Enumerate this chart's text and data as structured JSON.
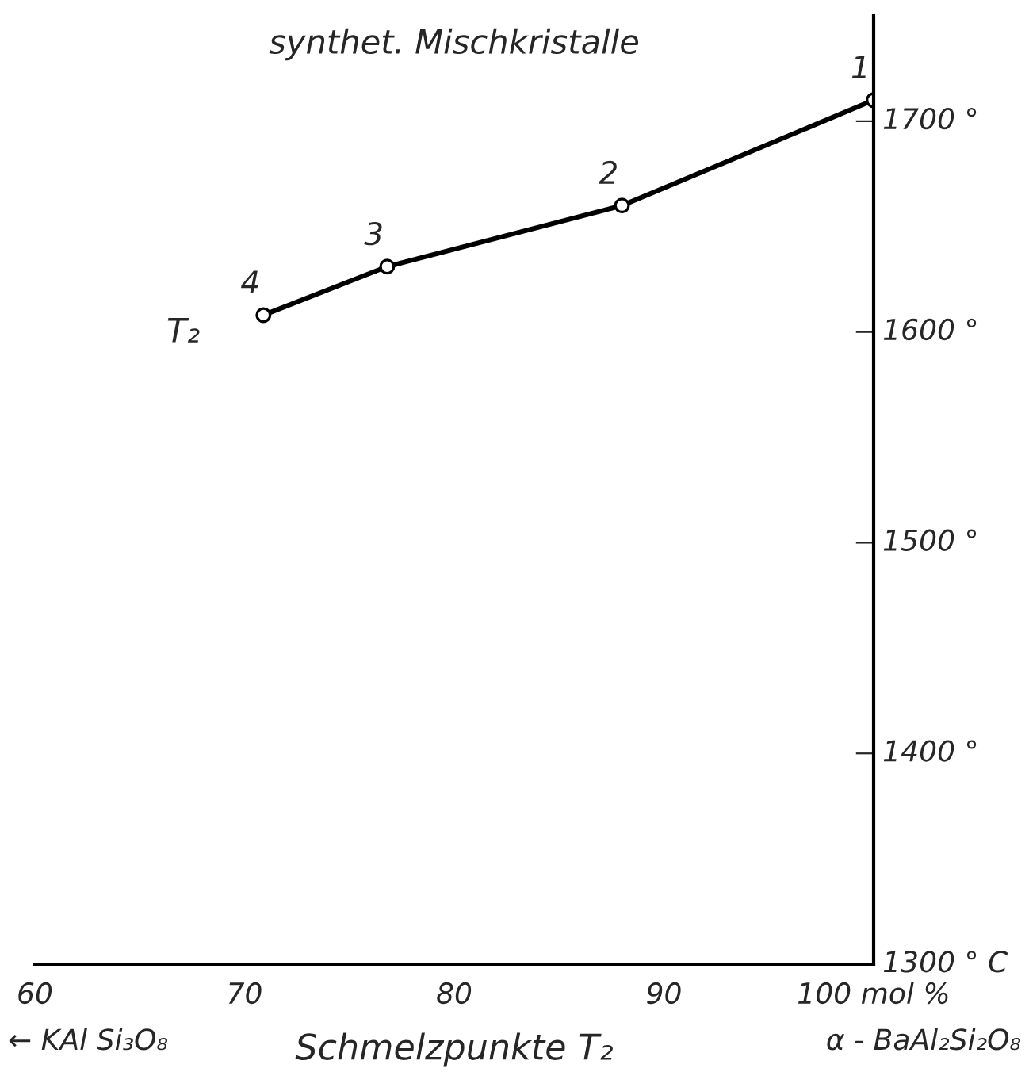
{
  "chart_data": {
    "type": "line",
    "title": "synthet. Mischkristalle",
    "xlabel": "Schmelzpunkte T₂",
    "x": [
      100,
      88,
      76.8,
      70.9
    ],
    "series": [
      {
        "color": "#000000",
        "values": [
          1710,
          1660,
          1631,
          1608
        ]
      }
    ],
    "marker": "circle",
    "line_style": "solid",
    "grid": false,
    "legend": false,
    "xlim": [
      60,
      100
    ],
    "xticks": [
      60,
      70,
      80,
      90,
      {
        "value": 100,
        "label": "100 mol %"
      }
    ],
    "ylim": [
      1300,
      1750
    ],
    "yticks": [
      {
        "value": 1300,
        "label": "1300 ° C"
      },
      {
        "value": 1400,
        "label": "1400 °"
      },
      {
        "value": 1500,
        "label": "1500 °"
      },
      {
        "value": 1600,
        "label": "1600 °"
      },
      {
        "value": 1700,
        "label": "1700 °"
      }
    ],
    "annotations": [
      {
        "text": "1",
        "x": 100,
        "y": 1710
      },
      {
        "text": "2",
        "x": 88,
        "y": 1660
      },
      {
        "text": "3",
        "x": 76.8,
        "y": 1631
      },
      {
        "text": "4",
        "x": 70.9,
        "y": 1608
      },
      "T₂",
      "← KAl Si₃O₈",
      "α - BaAl₂Si₂O₈"
    ]
  }
}
